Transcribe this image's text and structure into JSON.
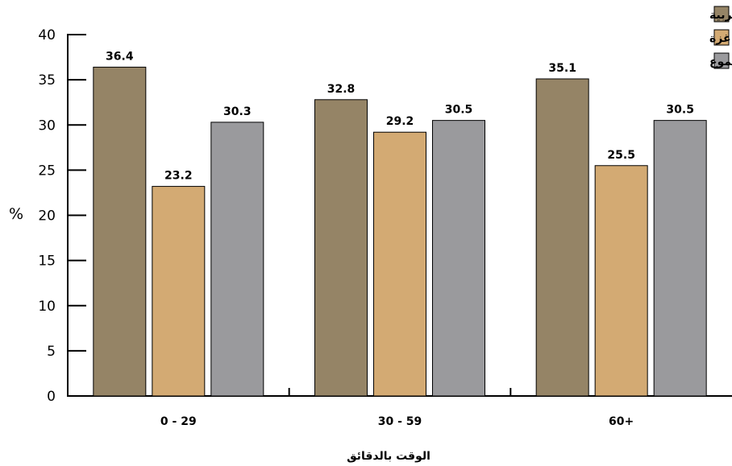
{
  "chart_data": {
    "type": "bar",
    "categories": [
      "0 - 29",
      "30 - 59",
      "60+"
    ],
    "series": [
      {
        "name": "الضفة الغربية",
        "color": "#958466",
        "values": [
          36.4,
          32.8,
          35.1
        ]
      },
      {
        "name": "قطاع غزة",
        "color": "#d3aa73",
        "values": [
          23.2,
          29.2,
          25.5
        ]
      },
      {
        "name": "المجموع",
        "color": "#9a9a9d",
        "values": [
          30.3,
          30.5,
          30.5
        ]
      }
    ],
    "xlabel": "الوقت بالدقائق",
    "ylabel": "%",
    "ylim": [
      0,
      40
    ],
    "yticks": [
      0,
      5,
      10,
      15,
      20,
      25,
      30,
      35,
      40
    ],
    "legend_position": "top-right",
    "grid": false
  }
}
